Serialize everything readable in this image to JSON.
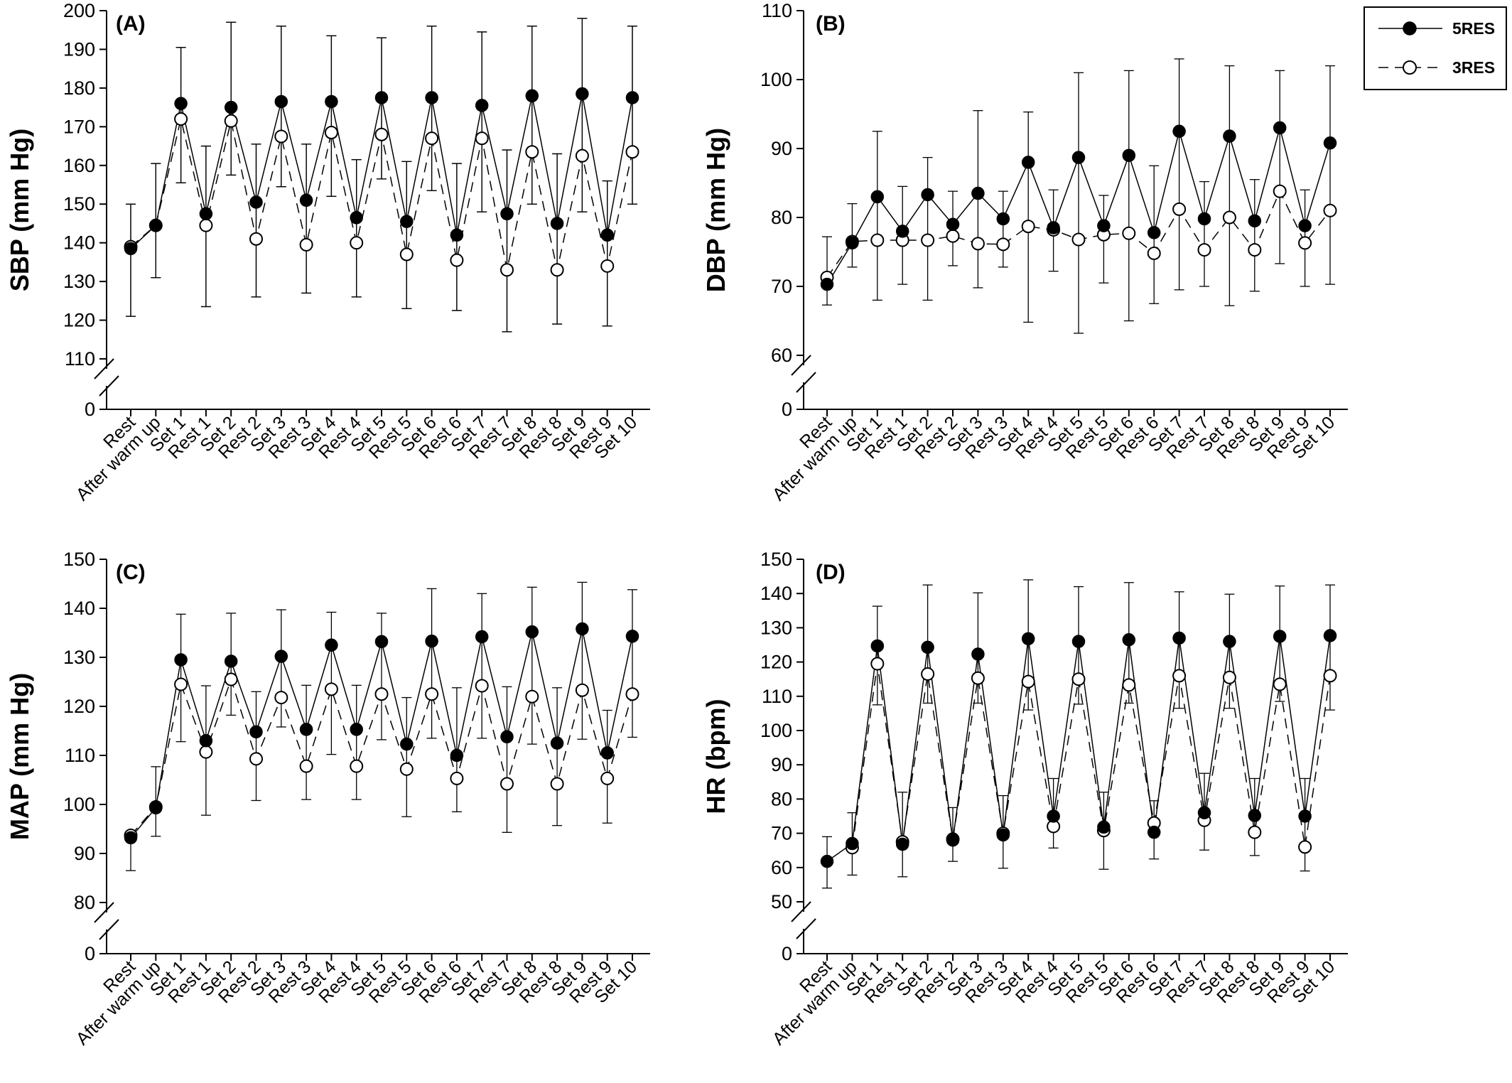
{
  "legend": {
    "entries": [
      {
        "label": "5RES",
        "marker": "filled-circle",
        "line": "solid"
      },
      {
        "label": "3RES",
        "marker": "open-circle",
        "line": "dashed"
      }
    ]
  },
  "chart_data": [
    {
      "type": "line",
      "panel_label": "(A)",
      "ylabel": "SBP (mm Hg)",
      "categories": [
        "Rest",
        "After warm up",
        "Set 1",
        "Rest 1",
        "Set 2",
        "Rest 2",
        "Set 3",
        "Rest 3",
        "Set 4",
        "Rest 4",
        "Set 5",
        "Rest 5",
        "Set 6",
        "Rest 6",
        "Set 7",
        "Rest 7",
        "Set 8",
        "Rest 8",
        "Set 9",
        "Rest 9",
        "Set 10"
      ],
      "ylim": [
        110,
        200
      ],
      "yticks": [
        110,
        120,
        130,
        140,
        150,
        160,
        170,
        180,
        190,
        200
      ],
      "axis_break": true,
      "break_label": "0",
      "series": [
        {
          "name": "5RES",
          "values": [
            138.5,
            144.5,
            176,
            147.5,
            175,
            150.5,
            176.5,
            151,
            176.5,
            146.5,
            177.5,
            145.5,
            177.5,
            142,
            175.5,
            147.5,
            178,
            145,
            178.5,
            142,
            177.5
          ],
          "err_upper": [
            150,
            160.5,
            190.5,
            165,
            197,
            165.5,
            196,
            165.5,
            193.5,
            161.5,
            193,
            161,
            196,
            160.5,
            194.5,
            164,
            196,
            163,
            198,
            156,
            196
          ],
          "err_lower": [
            121,
            131,
            155.5,
            123.5,
            157.5,
            126,
            154.5,
            127,
            152,
            126,
            156.5,
            123,
            153.5,
            122.5,
            148,
            117,
            150,
            119,
            148,
            118.5,
            150
          ]
        },
        {
          "name": "3RES",
          "values": [
            139,
            144.5,
            172,
            144.5,
            171.5,
            141,
            167.5,
            139.5,
            168.5,
            140,
            168,
            137,
            167,
            135.5,
            167,
            133,
            163.5,
            133,
            162.5,
            134,
            163.5
          ],
          "err_upper": [
            150,
            160.5,
            190.5,
            165,
            197,
            165.5,
            196,
            165.5,
            193.5,
            161.5,
            193,
            161,
            196,
            160.5,
            194.5,
            164,
            196,
            163,
            198,
            156,
            196
          ],
          "err_lower": [
            121,
            131,
            155.5,
            123.5,
            157.5,
            126,
            154.5,
            127,
            152,
            126,
            156.5,
            123,
            153.5,
            122.5,
            148,
            117,
            150,
            119,
            148,
            118.5,
            150
          ]
        }
      ]
    },
    {
      "type": "line",
      "panel_label": "(B)",
      "ylabel": "DBP (mm Hg)",
      "categories": [
        "Rest",
        "After warm up",
        "Set 1",
        "Rest 1",
        "Set 2",
        "Rest 2",
        "Set 3",
        "Rest 3",
        "Set 4",
        "Rest 4",
        "Set 5",
        "Rest 5",
        "Set 6",
        "Rest 6",
        "Set 7",
        "Rest 7",
        "Set 8",
        "Rest 8",
        "Set 9",
        "Rest 9",
        "Set 10"
      ],
      "ylim": [
        60,
        110
      ],
      "yticks": [
        60,
        70,
        80,
        90,
        100,
        110
      ],
      "axis_break": true,
      "break_label": "0",
      "series": [
        {
          "name": "5RES",
          "values": [
            70.3,
            76.3,
            83,
            78,
            83.3,
            79,
            83.5,
            79.8,
            88,
            78.5,
            88.7,
            78.8,
            89,
            77.8,
            92.5,
            79.8,
            91.8,
            79.5,
            93,
            78.8,
            90.8
          ],
          "err_upper": [
            77.2,
            82,
            92.5,
            84.5,
            88.7,
            83.8,
            95.5,
            83.8,
            95.3,
            84,
            101,
            83.2,
            101.3,
            87.5,
            103,
            85.2,
            102,
            85.5,
            101.3,
            84,
            102
          ],
          "err_lower": [
            67.3,
            72.8,
            68,
            70.3,
            68,
            73,
            69.8,
            72.8,
            64.8,
            72.2,
            63.2,
            70.5,
            65,
            67.5,
            69.5,
            70,
            67.2,
            69.3,
            73.3,
            70,
            70.3
          ]
        },
        {
          "name": "3RES",
          "values": [
            71.3,
            76.5,
            76.7,
            76.7,
            76.7,
            77.3,
            76.2,
            76.1,
            78.7,
            78.2,
            76.8,
            77.5,
            77.7,
            74.8,
            81.2,
            75.3,
            80,
            75.3,
            83.8,
            76.3,
            81
          ]
        }
      ]
    },
    {
      "type": "line",
      "panel_label": "(C)",
      "ylabel": "MAP (mm Hg)",
      "categories": [
        "Rest",
        "After warm up",
        "Set 1",
        "Rest 1",
        "Set 2",
        "Rest 2",
        "Set 3",
        "Rest 3",
        "Set 4",
        "Rest 4",
        "Set 5",
        "Rest 5",
        "Set 6",
        "Rest 6",
        "Set 7",
        "Rest 7",
        "Set 8",
        "Rest 8",
        "Set 9",
        "Rest 9",
        "Set 10"
      ],
      "ylim": [
        80,
        150
      ],
      "yticks": [
        80,
        90,
        100,
        110,
        120,
        130,
        140,
        150
      ],
      "axis_break": true,
      "break_label": "0",
      "series": [
        {
          "name": "5RES",
          "values": [
            93.2,
            99.3,
            129.5,
            113,
            129.2,
            114.8,
            130.2,
            115.3,
            132.5,
            115.3,
            133.2,
            112.3,
            133.3,
            110,
            134.2,
            113.8,
            135.2,
            112.5,
            135.8,
            110.5,
            134.3
          ],
          "err_upper": [
            null,
            107.7,
            138.8,
            124.2,
            139,
            123,
            139.7,
            124.3,
            139.2,
            124.3,
            139,
            121.8,
            144,
            123.8,
            143,
            124,
            144.3,
            123.8,
            145.3,
            119.2,
            143.8
          ],
          "err_lower": [
            86.5,
            93.5,
            112.8,
            97.8,
            118.2,
            100.8,
            115.8,
            101,
            110.2,
            101,
            113.2,
            97.5,
            113.5,
            98.5,
            113.5,
            94.3,
            112.3,
            95.7,
            113.3,
            96.2,
            113.7
          ]
        },
        {
          "name": "3RES",
          "values": [
            93.7,
            99.5,
            124.5,
            110.7,
            125.5,
            109.3,
            121.8,
            107.8,
            123.5,
            107.8,
            122.5,
            107.2,
            122.5,
            105.3,
            124.2,
            104.2,
            122,
            104.2,
            123.3,
            105.3,
            122.5
          ]
        }
      ]
    },
    {
      "type": "line",
      "panel_label": "(D)",
      "ylabel": "HR (bpm)",
      "categories": [
        "Rest",
        "After warm up",
        "Set 1",
        "Rest 1",
        "Set 2",
        "Rest 2",
        "Set 3",
        "Rest 3",
        "Set 4",
        "Rest 4",
        "Set 5",
        "Rest 5",
        "Set 6",
        "Rest 6",
        "Set 7",
        "Rest 7",
        "Set 8",
        "Rest 8",
        "Set 9",
        "Rest 9",
        "Set 10"
      ],
      "ylim": [
        50,
        150
      ],
      "yticks": [
        50,
        60,
        70,
        80,
        90,
        100,
        110,
        120,
        130,
        140,
        150
      ],
      "axis_break": true,
      "break_label": "0",
      "series": [
        {
          "name": "5RES",
          "values": [
            61.8,
            67,
            124.7,
            66.8,
            124.3,
            68,
            122.3,
            69.5,
            126.8,
            75,
            126,
            71.8,
            126.5,
            70.3,
            127,
            76,
            126,
            75.2,
            127.5,
            75,
            127.7
          ],
          "err_upper": [
            69,
            76,
            136.3,
            82,
            142.5,
            77.5,
            140.2,
            81,
            144,
            86,
            142,
            82,
            143.2,
            79.5,
            140.5,
            87.5,
            139.8,
            86,
            142.2,
            86,
            142.5
          ],
          "err_lower": [
            54,
            57.8,
            107.5,
            57.3,
            108,
            61.8,
            108,
            59.8,
            106,
            65.7,
            107.7,
            59.5,
            108,
            62.5,
            106.5,
            65.1,
            106.5,
            63.5,
            108.5,
            59,
            106
          ]
        },
        {
          "name": "3RES",
          "values": [
            null,
            65.8,
            119.5,
            67.5,
            116.5,
            68.3,
            115.3,
            70,
            114.3,
            72,
            115,
            70.8,
            113.3,
            73,
            116,
            73.8,
            115.5,
            70.3,
            113.5,
            66,
            116
          ]
        }
      ]
    }
  ]
}
